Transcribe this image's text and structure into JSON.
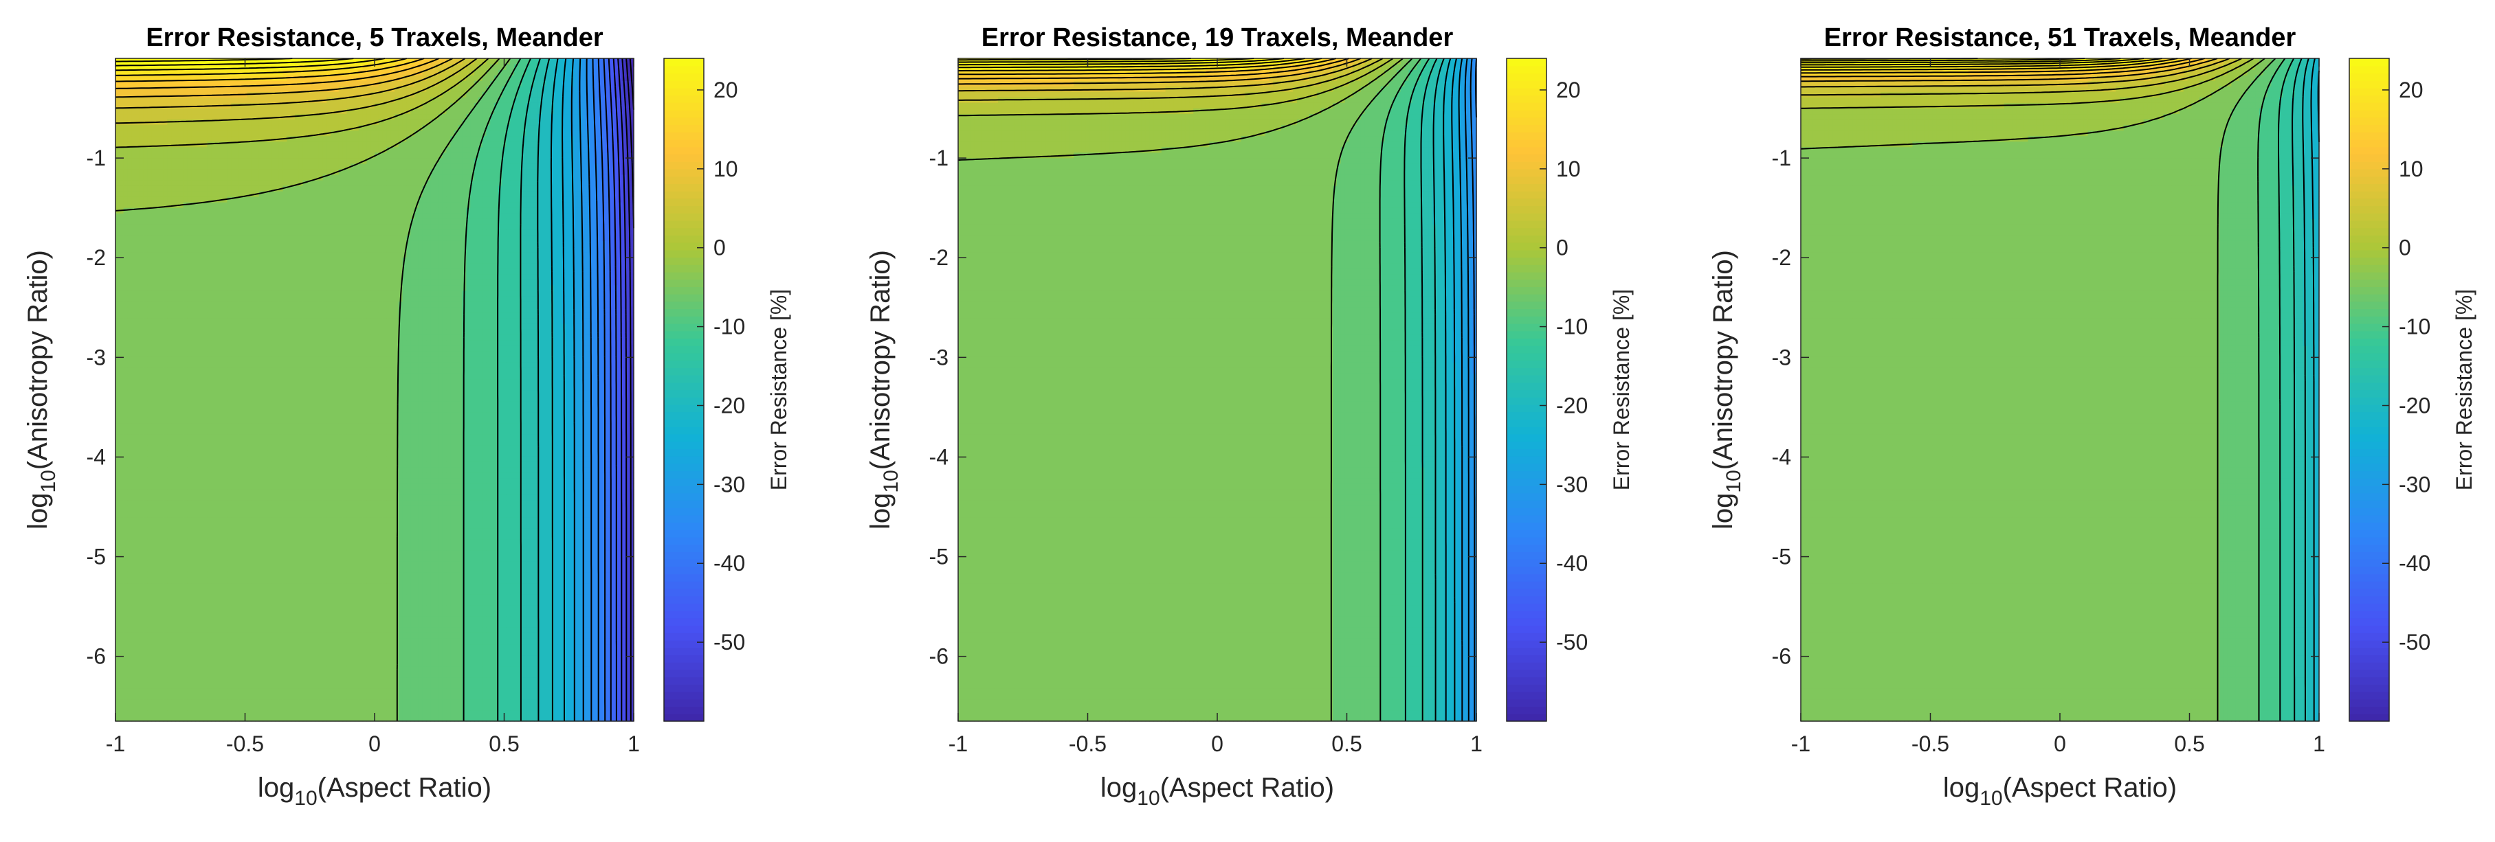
{
  "chart_data": [
    {
      "type": "contour",
      "title": "Error Resistance, 5 Traxels, Meander",
      "xlabel_base": "log",
      "xlabel_sub": "10",
      "xlabel_rest": "(Aspect Ratio)",
      "ylabel_base": "log",
      "ylabel_sub": "10",
      "ylabel_rest": "(Anisotropy Ratio)",
      "xlim": [
        -1,
        1
      ],
      "ylim": [
        -6.65,
        0
      ],
      "xticks": [
        "-1",
        "-0.5",
        "0",
        "0.5",
        "1"
      ],
      "yticks": [
        "-1",
        "-2",
        "-3",
        "-4",
        "-5",
        "-6"
      ],
      "colorbar": {
        "label": "Error Resistance [%]",
        "clim": [
          -60,
          24
        ],
        "ticks": [
          "20",
          "10",
          "0",
          "-10",
          "-20",
          "-30",
          "-40",
          "-50"
        ]
      },
      "n_traxels": 5
    },
    {
      "type": "contour",
      "title": "Error Resistance, 19 Traxels, Meander",
      "xlabel_base": "log",
      "xlabel_sub": "10",
      "xlabel_rest": "(Aspect Ratio)",
      "ylabel_base": "log",
      "ylabel_sub": "10",
      "ylabel_rest": "(Anisotropy Ratio)",
      "xlim": [
        -1,
        1
      ],
      "ylim": [
        -6.65,
        0
      ],
      "xticks": [
        "-1",
        "-0.5",
        "0",
        "0.5",
        "1"
      ],
      "yticks": [
        "-1",
        "-2",
        "-3",
        "-4",
        "-5",
        "-6"
      ],
      "colorbar": {
        "label": "Error Resistance [%]",
        "clim": [
          -60,
          24
        ],
        "ticks": [
          "20",
          "10",
          "0",
          "-10",
          "-20",
          "-30",
          "-40",
          "-50"
        ]
      },
      "n_traxels": 19
    },
    {
      "type": "contour",
      "title": "Error Resistance, 51 Traxels, Meander",
      "xlabel_base": "log",
      "xlabel_sub": "10",
      "xlabel_rest": "(Aspect Ratio)",
      "ylabel_base": "log",
      "ylabel_sub": "10",
      "ylabel_rest": "(Anisotropy Ratio)",
      "xlim": [
        -1,
        1
      ],
      "ylim": [
        -6.65,
        0
      ],
      "xticks": [
        "-1",
        "-0.5",
        "0",
        "0.5",
        "1"
      ],
      "yticks": [
        "-1",
        "-2",
        "-3",
        "-4",
        "-5",
        "-6"
      ],
      "colorbar": {
        "label": "Error Resistance [%]",
        "clim": [
          -60,
          24
        ],
        "ticks": [
          "20",
          "10",
          "0",
          "-10",
          "-20",
          "-30",
          "-40",
          "-50"
        ]
      },
      "n_traxels": 51
    }
  ]
}
